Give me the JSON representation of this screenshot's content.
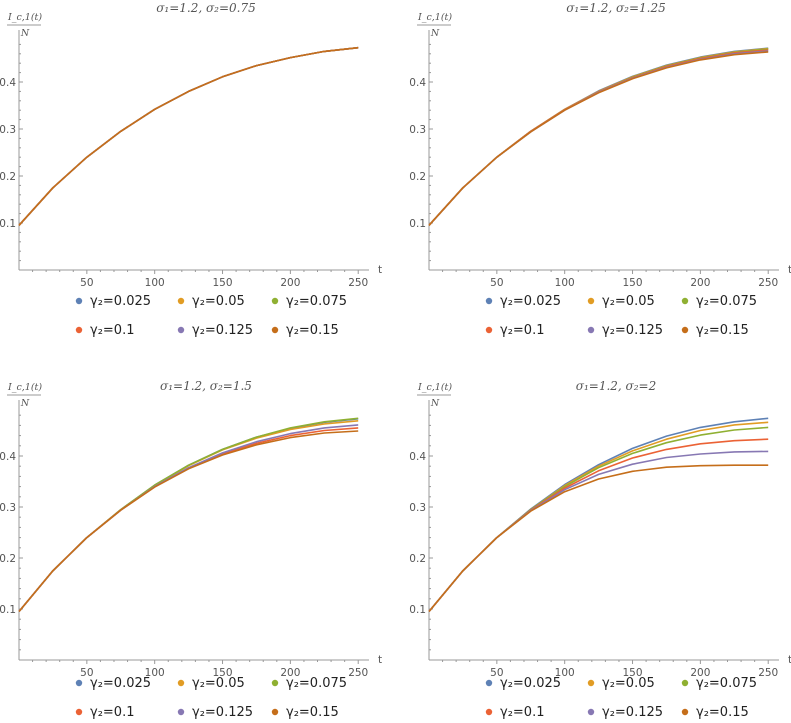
{
  "chart_data": [
    {
      "type": "line",
      "title": "σ₁=1.2,  σ₂=0.75",
      "ylabel": "I_c,1(t)/N",
      "xlabel": "t",
      "xlim": [
        0,
        255
      ],
      "ylim": [
        0,
        0.5
      ],
      "xticks": [
        50,
        100,
        150,
        200,
        250
      ],
      "yticks": [
        0.1,
        0.2,
        0.3,
        0.4
      ],
      "x": [
        0,
        25,
        50,
        75,
        100,
        125,
        150,
        175,
        200,
        225,
        250
      ],
      "series": [
        {
          "name": "γ₂=0.025",
          "values": [
            0.095,
            0.175,
            0.24,
            0.295,
            0.342,
            0.38,
            0.411,
            0.435,
            0.452,
            0.465,
            0.473
          ]
        },
        {
          "name": "γ₂=0.05",
          "values": [
            0.095,
            0.175,
            0.24,
            0.295,
            0.342,
            0.38,
            0.411,
            0.435,
            0.452,
            0.465,
            0.473
          ]
        },
        {
          "name": "γ₂=0.075",
          "values": [
            0.095,
            0.175,
            0.24,
            0.295,
            0.342,
            0.38,
            0.411,
            0.435,
            0.452,
            0.465,
            0.473
          ]
        },
        {
          "name": "γ₂=0.1",
          "values": [
            0.095,
            0.175,
            0.24,
            0.295,
            0.342,
            0.38,
            0.411,
            0.435,
            0.452,
            0.465,
            0.473
          ]
        },
        {
          "name": "γ₂=0.125",
          "values": [
            0.095,
            0.175,
            0.24,
            0.295,
            0.342,
            0.38,
            0.411,
            0.435,
            0.452,
            0.465,
            0.473
          ]
        },
        {
          "name": "γ₂=0.15",
          "values": [
            0.095,
            0.175,
            0.24,
            0.295,
            0.342,
            0.38,
            0.411,
            0.435,
            0.452,
            0.465,
            0.473
          ]
        }
      ]
    },
    {
      "type": "line",
      "title": "σ₁=1.2,  σ₂=1.25",
      "ylabel": "I_c,1(t)/N",
      "xlabel": "t",
      "xlim": [
        0,
        255
      ],
      "ylim": [
        0,
        0.5
      ],
      "xticks": [
        50,
        100,
        150,
        200,
        250
      ],
      "yticks": [
        0.1,
        0.2,
        0.3,
        0.4
      ],
      "x": [
        0,
        25,
        50,
        75,
        100,
        125,
        150,
        175,
        200,
        225,
        250
      ],
      "series": [
        {
          "name": "γ₂=0.025",
          "values": [
            0.095,
            0.175,
            0.24,
            0.295,
            0.342,
            0.381,
            0.412,
            0.436,
            0.453,
            0.465,
            0.472
          ]
        },
        {
          "name": "γ₂=0.05",
          "values": [
            0.095,
            0.175,
            0.24,
            0.295,
            0.342,
            0.38,
            0.411,
            0.435,
            0.452,
            0.464,
            0.471
          ]
        },
        {
          "name": "γ₂=0.075",
          "values": [
            0.095,
            0.175,
            0.24,
            0.295,
            0.341,
            0.379,
            0.41,
            0.434,
            0.451,
            0.463,
            0.47
          ]
        },
        {
          "name": "γ₂=0.1",
          "values": [
            0.095,
            0.175,
            0.24,
            0.295,
            0.341,
            0.379,
            0.409,
            0.433,
            0.45,
            0.462,
            0.468
          ]
        },
        {
          "name": "γ₂=0.125",
          "values": [
            0.095,
            0.175,
            0.24,
            0.294,
            0.34,
            0.378,
            0.408,
            0.431,
            0.448,
            0.46,
            0.466
          ]
        },
        {
          "name": "γ₂=0.15",
          "values": [
            0.095,
            0.175,
            0.24,
            0.294,
            0.34,
            0.377,
            0.407,
            0.43,
            0.447,
            0.458,
            0.464
          ]
        }
      ]
    },
    {
      "type": "line",
      "title": "σ₁=1.2,  σ₂=1.5",
      "ylabel": "I_c,1(t)/N",
      "xlabel": "t",
      "xlim": [
        0,
        255
      ],
      "ylim": [
        0,
        0.5
      ],
      "xticks": [
        50,
        100,
        150,
        200,
        250
      ],
      "yticks": [
        0.1,
        0.2,
        0.3,
        0.4
      ],
      "x": [
        0,
        25,
        50,
        75,
        100,
        125,
        150,
        175,
        200,
        225,
        250
      ],
      "series": [
        {
          "name": "γ₂=0.025",
          "values": [
            0.095,
            0.175,
            0.24,
            0.295,
            0.343,
            0.382,
            0.413,
            0.437,
            0.454,
            0.466,
            0.473
          ]
        },
        {
          "name": "γ₂=0.05",
          "values": [
            0.095,
            0.175,
            0.24,
            0.295,
            0.342,
            0.381,
            0.412,
            0.435,
            0.452,
            0.463,
            0.469
          ]
        },
        {
          "name": "γ₂=0.075",
          "values": [
            0.095,
            0.175,
            0.24,
            0.295,
            0.343,
            0.382,
            0.413,
            0.437,
            0.455,
            0.467,
            0.474
          ]
        },
        {
          "name": "γ₂=0.1",
          "values": [
            0.095,
            0.175,
            0.24,
            0.294,
            0.34,
            0.376,
            0.404,
            0.425,
            0.44,
            0.45,
            0.455
          ]
        },
        {
          "name": "γ₂=0.125",
          "values": [
            0.095,
            0.175,
            0.24,
            0.294,
            0.34,
            0.377,
            0.406,
            0.428,
            0.444,
            0.455,
            0.461
          ]
        },
        {
          "name": "γ₂=0.15",
          "values": [
            0.095,
            0.175,
            0.24,
            0.294,
            0.339,
            0.375,
            0.402,
            0.422,
            0.436,
            0.445,
            0.449
          ]
        }
      ]
    },
    {
      "type": "line",
      "title": "σ₁=1.2,  σ₂=2",
      "ylabel": "I_c,1(t)/N",
      "xlabel": "t",
      "xlim": [
        0,
        255
      ],
      "ylim": [
        0,
        0.5
      ],
      "xticks": [
        50,
        100,
        150,
        200,
        250
      ],
      "yticks": [
        0.1,
        0.2,
        0.3,
        0.4
      ],
      "x": [
        0,
        25,
        50,
        75,
        100,
        125,
        150,
        175,
        200,
        225,
        250
      ],
      "series": [
        {
          "name": "γ₂=0.025",
          "values": [
            0.095,
            0.175,
            0.24,
            0.296,
            0.344,
            0.383,
            0.415,
            0.439,
            0.456,
            0.467,
            0.474
          ]
        },
        {
          "name": "γ₂=0.05",
          "values": [
            0.095,
            0.175,
            0.24,
            0.295,
            0.342,
            0.38,
            0.41,
            0.433,
            0.45,
            0.461,
            0.466
          ]
        },
        {
          "name": "γ₂=0.075",
          "values": [
            0.095,
            0.175,
            0.24,
            0.295,
            0.34,
            0.377,
            0.405,
            0.426,
            0.441,
            0.451,
            0.456
          ]
        },
        {
          "name": "γ₂=0.1",
          "values": [
            0.095,
            0.175,
            0.24,
            0.294,
            0.337,
            0.371,
            0.396,
            0.413,
            0.424,
            0.43,
            0.433
          ]
        },
        {
          "name": "γ₂=0.125",
          "values": [
            0.095,
            0.175,
            0.24,
            0.293,
            0.334,
            0.364,
            0.384,
            0.397,
            0.404,
            0.408,
            0.409
          ]
        },
        {
          "name": "γ₂=0.15",
          "values": [
            0.095,
            0.175,
            0.24,
            0.292,
            0.33,
            0.355,
            0.37,
            0.378,
            0.381,
            0.382,
            0.382
          ]
        }
      ]
    }
  ],
  "legend": {
    "entries": [
      "γ₂=0.025",
      "γ₂=0.05",
      "γ₂=0.075",
      "γ₂=0.1",
      "γ₂=0.125",
      "γ₂=0.15"
    ],
    "colors": [
      "#5E81B5",
      "#E19C24",
      "#8FB032",
      "#EB6235",
      "#8778B3",
      "#C56E1A"
    ]
  }
}
